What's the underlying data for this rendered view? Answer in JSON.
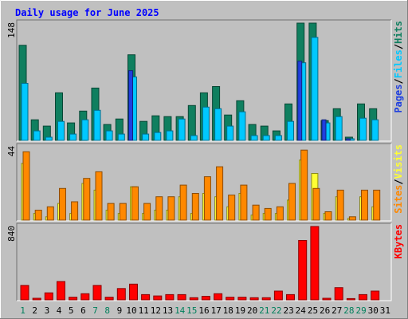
{
  "chart_data": {
    "type": "bar",
    "title": "Daily usage for June 2025",
    "categories": [
      "1",
      "2",
      "3",
      "4",
      "5",
      "6",
      "7",
      "8",
      "9",
      "10",
      "11",
      "12",
      "13",
      "14",
      "15",
      "16",
      "17",
      "18",
      "19",
      "20",
      "21",
      "22",
      "23",
      "24",
      "25",
      "26",
      "27",
      "28",
      "29",
      "30",
      "31"
    ],
    "weekend_days": [
      "1",
      "7",
      "8",
      "14",
      "15",
      "21",
      "22",
      "28",
      "29"
    ],
    "panels": [
      {
        "id": "hits-files-pages",
        "ymax_label": "148",
        "ylim": [
          0,
          148
        ],
        "legend": [
          "Pages",
          "/",
          "Files",
          "/",
          "Hits"
        ],
        "series": [
          {
            "name": "Hits",
            "color": "#0f7f5f",
            "values": [
              120,
              26,
              18,
              60,
              22,
              37,
              66,
              20,
              27,
              108,
              24,
              31,
              30,
              30,
              44,
              60,
              68,
              32,
              50,
              20,
              18,
              12,
              46,
              148,
              148,
              25,
              40,
              4,
              46,
              40,
              0
            ]
          },
          {
            "name": "Files",
            "color": "#00c8ff",
            "values": [
              72,
              12,
              4,
              24,
              8,
              26,
              38,
              12,
              8,
              80,
              8,
              10,
              12,
              27,
              6,
              42,
              40,
              18,
              36,
              6,
              6,
              6,
              24,
              98,
              130,
              22,
              30,
              2,
              28,
              26,
              0
            ]
          },
          {
            "name": "Pages",
            "color": "#1f3fdf",
            "values": [
              0,
              0,
              0,
              0,
              0,
              0,
              0,
              0,
              0,
              88,
              0,
              0,
              0,
              0,
              0,
              0,
              0,
              0,
              0,
              0,
              0,
              0,
              0,
              100,
              0,
              26,
              0,
              2,
              0,
              0,
              0
            ]
          }
        ]
      },
      {
        "id": "visits-sites",
        "ymax_label": "44",
        "ylim": [
          0,
          44
        ],
        "legend": [
          "Sites",
          "/",
          "Visits"
        ],
        "series": [
          {
            "name": "Visits",
            "color": "#ffff33",
            "values": [
              34,
              4,
              2,
              10,
              4,
              22,
              18,
              6,
              4,
              20,
              4,
              6,
              6,
              14,
              4,
              16,
              14,
              8,
              16,
              3,
              4,
              4,
              12,
              36,
              28,
              4,
              14,
              1,
              14,
              8,
              0
            ]
          },
          {
            "name": "Sites",
            "color": "#ff8800",
            "values": [
              41,
              6,
              8,
              19,
              11,
              25,
              29,
              10,
              10,
              20,
              10,
              14,
              14,
              21,
              16,
              26,
              32,
              15,
              21,
              9,
              7,
              8,
              22,
              42,
              19,
              5,
              18,
              2,
              18,
              18,
              0
            ]
          }
        ]
      },
      {
        "id": "kbytes",
        "ymax_label": "840",
        "ylim": [
          0,
          840
        ],
        "legend": [
          "KBytes"
        ],
        "series": [
          {
            "name": "KBytes",
            "color": "#ff0000",
            "values": [
              165,
              18,
              80,
              210,
              30,
              70,
              165,
              30,
              130,
              180,
              60,
              45,
              60,
              60,
              25,
              40,
              70,
              30,
              30,
              25,
              25,
              100,
              60,
              680,
              840,
              18,
              140,
              15,
              60,
              100,
              0
            ]
          }
        ]
      }
    ]
  },
  "colors": {
    "background": "#c0c0c0",
    "border_light": "#ffffff",
    "border_dark": "#808080",
    "title": "#0000ff",
    "plot_bg": "#c0c0c0",
    "weekday_label": "#000000",
    "weekend_label": "#00805c"
  }
}
